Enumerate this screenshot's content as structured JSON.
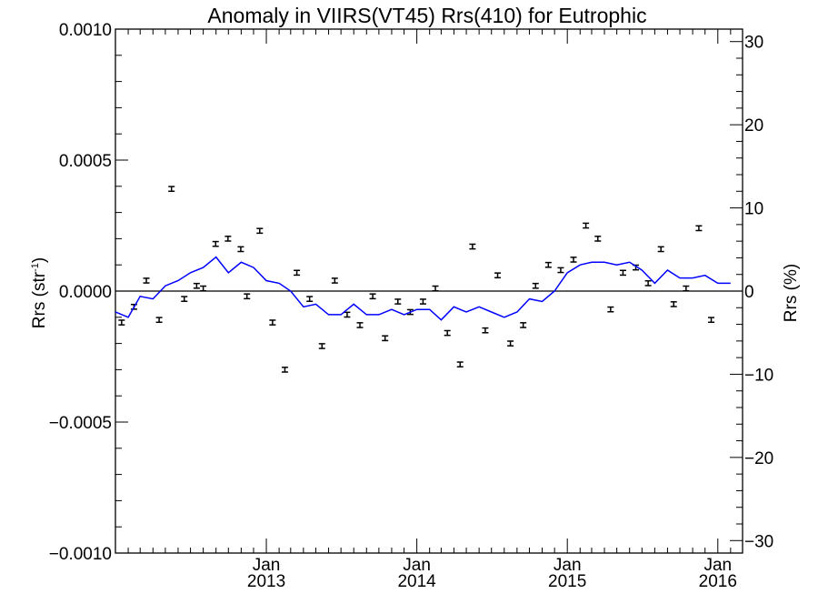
{
  "chart_data": {
    "type": "line",
    "title": "Anomaly in VIIRS(VT45) Rrs(410) for Eutrophic",
    "ylabel_left": {
      "base": "Rrs (str",
      "sup": "-1",
      "close": ")"
    },
    "ylabel_right": "Rrs (%)",
    "x_range": [
      "2012-01-01",
      "2016-03-01"
    ],
    "ylim_left": [
      -0.001,
      0.001
    ],
    "ylim_right": [
      -31.5,
      31.5
    ],
    "x_ticks": [
      {
        "date": "2013-01-01",
        "month": "Jan",
        "year": "2013"
      },
      {
        "date": "2014-01-01",
        "month": "Jan",
        "year": "2014"
      },
      {
        "date": "2015-01-01",
        "month": "Jan",
        "year": "2015"
      },
      {
        "date": "2016-01-01",
        "month": "Jan",
        "year": "2016"
      }
    ],
    "y_ticks_left": [
      {
        "value": 0.001,
        "label": "0.0010"
      },
      {
        "value": 0.0005,
        "label": "0.0005"
      },
      {
        "value": 0.0,
        "label": "0.0000"
      },
      {
        "value": -0.0005,
        "label": "−0.0005"
      },
      {
        "value": -0.001,
        "label": "−0.0010"
      }
    ],
    "y_ticks_right": [
      {
        "value": 30,
        "label": "30"
      },
      {
        "value": 20,
        "label": "20"
      },
      {
        "value": 10,
        "label": "10"
      },
      {
        "value": 0,
        "label": "0"
      },
      {
        "value": -10,
        "label": "−10"
      },
      {
        "value": -20,
        "label": "−20"
      },
      {
        "value": -30,
        "label": "−30"
      }
    ],
    "zero_line": true,
    "series": [
      {
        "kind": "errorbar",
        "color": "#000000",
        "error": 9e-06,
        "points": [
          {
            "x": "2012-01-16",
            "y": -0.00012
          },
          {
            "x": "2012-02-15",
            "y": -6e-05
          },
          {
            "x": "2012-03-16",
            "y": 4e-05
          },
          {
            "x": "2012-04-16",
            "y": -0.00011
          },
          {
            "x": "2012-05-16",
            "y": 0.00039
          },
          {
            "x": "2012-06-16",
            "y": -3e-05
          },
          {
            "x": "2012-07-16",
            "y": 2e-05
          },
          {
            "x": "2012-08-01",
            "y": 1e-05
          },
          {
            "x": "2012-08-31",
            "y": 0.00018
          },
          {
            "x": "2012-09-30",
            "y": 0.0002
          },
          {
            "x": "2012-10-31",
            "y": 0.00016
          },
          {
            "x": "2012-11-15",
            "y": -2e-05
          },
          {
            "x": "2012-12-16",
            "y": 0.00023
          },
          {
            "x": "2013-01-16",
            "y": -0.00012
          },
          {
            "x": "2013-02-15",
            "y": -0.0003
          },
          {
            "x": "2013-03-16",
            "y": 7e-05
          },
          {
            "x": "2013-04-16",
            "y": -3e-05
          },
          {
            "x": "2013-05-16",
            "y": -0.00021
          },
          {
            "x": "2013-06-16",
            "y": 4e-05
          },
          {
            "x": "2013-07-16",
            "y": -9e-05
          },
          {
            "x": "2013-08-16",
            "y": -0.00013
          },
          {
            "x": "2013-09-16",
            "y": -2e-05
          },
          {
            "x": "2013-10-16",
            "y": -0.00018
          },
          {
            "x": "2013-11-16",
            "y": -4e-05
          },
          {
            "x": "2013-12-16",
            "y": -8e-05
          },
          {
            "x": "2014-01-16",
            "y": -4e-05
          },
          {
            "x": "2014-02-15",
            "y": 1e-05
          },
          {
            "x": "2014-03-16",
            "y": -0.00016
          },
          {
            "x": "2014-04-16",
            "y": -0.00028
          },
          {
            "x": "2014-05-16",
            "y": 0.00017
          },
          {
            "x": "2014-06-16",
            "y": -0.00015
          },
          {
            "x": "2014-07-16",
            "y": 6e-05
          },
          {
            "x": "2014-08-16",
            "y": -0.0002
          },
          {
            "x": "2014-09-16",
            "y": -0.00013
          },
          {
            "x": "2014-10-16",
            "y": 2e-05
          },
          {
            "x": "2014-11-16",
            "y": 0.0001
          },
          {
            "x": "2014-12-16",
            "y": 8e-05
          },
          {
            "x": "2015-01-16",
            "y": 0.00012
          },
          {
            "x": "2015-02-15",
            "y": 0.00025
          },
          {
            "x": "2015-03-16",
            "y": 0.0002
          },
          {
            "x": "2015-04-16",
            "y": -7e-05
          },
          {
            "x": "2015-05-16",
            "y": 7e-05
          },
          {
            "x": "2015-06-16",
            "y": 9e-05
          },
          {
            "x": "2015-07-16",
            "y": 3e-05
          },
          {
            "x": "2015-08-16",
            "y": 0.00016
          },
          {
            "x": "2015-09-16",
            "y": -5e-05
          },
          {
            "x": "2015-10-16",
            "y": 1e-05
          },
          {
            "x": "2015-11-16",
            "y": 0.00024
          },
          {
            "x": "2015-12-16",
            "y": -0.00011
          }
        ]
      },
      {
        "kind": "line",
        "color": "#0000ff",
        "points": [
          {
            "x": "2012-01-01",
            "y": -8e-05
          },
          {
            "x": "2012-02-01",
            "y": -0.0001
          },
          {
            "x": "2012-03-01",
            "y": -2e-05
          },
          {
            "x": "2012-04-01",
            "y": -3e-05
          },
          {
            "x": "2012-05-01",
            "y": 2e-05
          },
          {
            "x": "2012-06-01",
            "y": 4e-05
          },
          {
            "x": "2012-07-01",
            "y": 7e-05
          },
          {
            "x": "2012-08-01",
            "y": 9e-05
          },
          {
            "x": "2012-09-01",
            "y": 0.00013
          },
          {
            "x": "2012-10-01",
            "y": 7e-05
          },
          {
            "x": "2012-11-01",
            "y": 0.00011
          },
          {
            "x": "2012-12-01",
            "y": 9e-05
          },
          {
            "x": "2013-01-01",
            "y": 4e-05
          },
          {
            "x": "2013-02-01",
            "y": 3e-05
          },
          {
            "x": "2013-03-01",
            "y": 0.0
          },
          {
            "x": "2013-04-01",
            "y": -6e-05
          },
          {
            "x": "2013-05-01",
            "y": -5e-05
          },
          {
            "x": "2013-06-01",
            "y": -9e-05
          },
          {
            "x": "2013-07-01",
            "y": -9e-05
          },
          {
            "x": "2013-08-01",
            "y": -5e-05
          },
          {
            "x": "2013-09-01",
            "y": -9e-05
          },
          {
            "x": "2013-10-01",
            "y": -9e-05
          },
          {
            "x": "2013-11-01",
            "y": -7e-05
          },
          {
            "x": "2013-12-01",
            "y": -9e-05
          },
          {
            "x": "2014-01-01",
            "y": -7e-05
          },
          {
            "x": "2014-02-01",
            "y": -7e-05
          },
          {
            "x": "2014-03-01",
            "y": -0.00011
          },
          {
            "x": "2014-04-01",
            "y": -6e-05
          },
          {
            "x": "2014-05-01",
            "y": -8e-05
          },
          {
            "x": "2014-06-01",
            "y": -6e-05
          },
          {
            "x": "2014-07-01",
            "y": -8e-05
          },
          {
            "x": "2014-08-01",
            "y": -0.0001
          },
          {
            "x": "2014-09-01",
            "y": -8e-05
          },
          {
            "x": "2014-10-01",
            "y": -3e-05
          },
          {
            "x": "2014-11-01",
            "y": -4e-05
          },
          {
            "x": "2014-12-01",
            "y": 0.0
          },
          {
            "x": "2015-01-01",
            "y": 7e-05
          },
          {
            "x": "2015-02-01",
            "y": 0.0001
          },
          {
            "x": "2015-03-01",
            "y": 0.00011
          },
          {
            "x": "2015-04-01",
            "y": 0.00011
          },
          {
            "x": "2015-05-01",
            "y": 0.0001
          },
          {
            "x": "2015-06-01",
            "y": 0.00011
          },
          {
            "x": "2015-07-01",
            "y": 8e-05
          },
          {
            "x": "2015-08-01",
            "y": 3e-05
          },
          {
            "x": "2015-09-01",
            "y": 8e-05
          },
          {
            "x": "2015-10-01",
            "y": 5e-05
          },
          {
            "x": "2015-11-01",
            "y": 5e-05
          },
          {
            "x": "2015-12-01",
            "y": 6e-05
          },
          {
            "x": "2016-01-01",
            "y": 3e-05
          },
          {
            "x": "2016-02-01",
            "y": 3e-05
          }
        ]
      }
    ]
  }
}
